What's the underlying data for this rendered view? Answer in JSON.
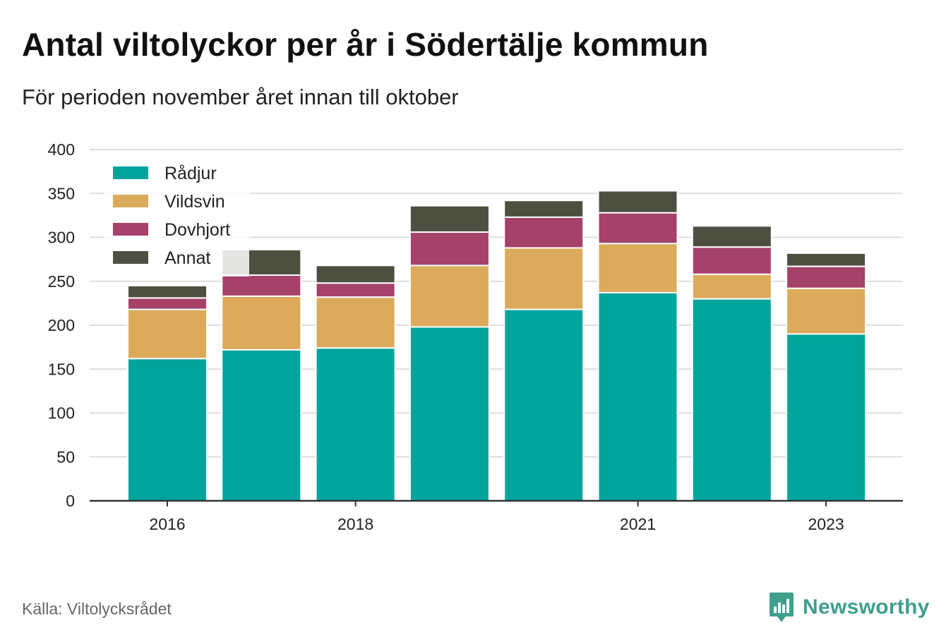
{
  "title": "Antal viltolyckor per år i Södertälje kommun",
  "subtitle": "För perioden november året innan till oktober",
  "source": "Källa: Viltolycksrådet",
  "brand": "Newsworthy",
  "colors": {
    "Rådjur": "#00a49a",
    "Vildsvin": "#dbab5b",
    "Dovhjort": "#a64169",
    "Annat": "#4d5040",
    "grid": "#dddddd",
    "axis": "#333333",
    "brand": "#3f9f8c"
  },
  "chart_data": {
    "type": "bar",
    "stacked": true,
    "categories": [
      "2016",
      "2017",
      "2018",
      "2019",
      "2020",
      "2021",
      "2022",
      "2023"
    ],
    "x_tick_labels": [
      "2016",
      "2018",
      "2021",
      "2023"
    ],
    "series": [
      {
        "name": "Rådjur",
        "values": [
          162,
          172,
          174,
          198,
          218,
          237,
          230,
          190
        ]
      },
      {
        "name": "Vildsvin",
        "values": [
          56,
          61,
          58,
          70,
          70,
          56,
          28,
          52
        ]
      },
      {
        "name": "Dovhjort",
        "values": [
          13,
          24,
          16,
          38,
          35,
          35,
          31,
          25
        ]
      },
      {
        "name": "Annat",
        "values": [
          14,
          29,
          20,
          30,
          19,
          25,
          24,
          15
        ]
      }
    ],
    "ylim": [
      0,
      400
    ],
    "yticks": [
      0,
      50,
      100,
      150,
      200,
      250,
      300,
      350,
      400
    ],
    "grid": true,
    "legend_position": "top-left",
    "xlabel": "",
    "ylabel": ""
  }
}
